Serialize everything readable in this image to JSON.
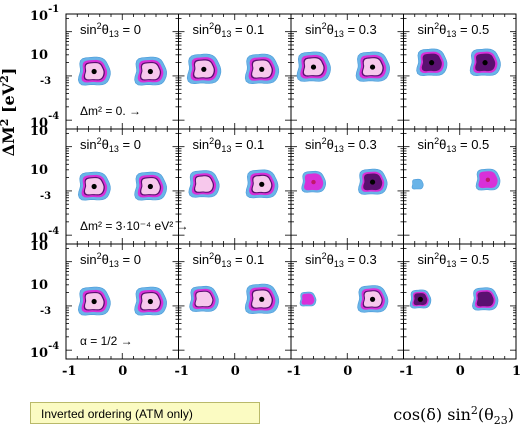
{
  "chart_data": {
    "type": "contour-grid",
    "y_label_main": "ΔM",
    "y_label_sup": "2",
    "y_label_unit_open": " [eV",
    "y_label_unit_sup": "2",
    "y_label_unit_close": "]",
    "x_label_pre": "cos(δ) sin",
    "x_label_sup": "2",
    "x_label_post": "(θ",
    "x_label_sub": "23",
    "x_label_close": ")",
    "x_ticks": [
      "-1",
      "0",
      "1"
    ],
    "x_range": [
      -1,
      1
    ],
    "y_ticks": [
      "10",
      "-3"
    ],
    "y_top_exp": "-1",
    "y_bottom_exp": "-4",
    "y_log_scale": true,
    "colors": {
      "outer": "#6ab4e8",
      "mid": "#d830d8",
      "inner_ring": "#5a1070",
      "core": "#f7c8ec",
      "best_fit": "#000000"
    },
    "columns": [
      {
        "label_base": "sin",
        "label_sup": "2",
        "label_theta": "θ",
        "label_sub": "13",
        "label_value": " = 0"
      },
      {
        "label_base": "sin",
        "label_sup": "2",
        "label_theta": "θ",
        "label_sub": "13",
        "label_value": " = 0.1"
      },
      {
        "label_base": "sin",
        "label_sup": "2",
        "label_theta": "θ",
        "label_sub": "13",
        "label_value": " = 0.3"
      },
      {
        "label_base": "sin",
        "label_sup": "2",
        "label_theta": "θ",
        "label_sub": "13",
        "label_value": " = 0.5"
      }
    ],
    "rows": [
      {
        "annotation": "Δm² = 0. →",
        "blobs": [
          [
            {
              "x": -0.5,
              "y": -2.9,
              "size": 1.0,
              "level": 4,
              "dot": "black"
            },
            {
              "x": 0.5,
              "y": -2.9,
              "size": 1.0,
              "level": 4,
              "dot": "black"
            }
          ],
          [
            {
              "x": -0.55,
              "y": -2.85,
              "size": 1.05,
              "level": 4,
              "dot": "black"
            },
            {
              "x": 0.48,
              "y": -2.85,
              "size": 1.05,
              "level": 4,
              "dot": "black"
            }
          ],
          [
            {
              "x": -0.6,
              "y": -2.8,
              "size": 1.05,
              "level": 4,
              "dot": "black"
            },
            {
              "x": 0.45,
              "y": -2.8,
              "size": 1.05,
              "level": 4,
              "dot": "black"
            }
          ],
          [
            {
              "x": -0.5,
              "y": -2.7,
              "size": 0.95,
              "level": 3,
              "dot": "black"
            },
            {
              "x": 0.45,
              "y": -2.7,
              "size": 0.95,
              "level": 3,
              "dot": "black"
            }
          ]
        ]
      },
      {
        "annotation": "Δm² = 3·10⁻⁴ eV² →",
        "blobs": [
          [
            {
              "x": -0.5,
              "y": -2.9,
              "size": 1.0,
              "level": 4,
              "dot": "black"
            },
            {
              "x": 0.5,
              "y": -2.9,
              "size": 1.0,
              "level": 4,
              "dot": "black"
            }
          ],
          [
            {
              "x": -0.55,
              "y": -2.85,
              "size": 0.95,
              "level": 4,
              "dot": "none"
            },
            {
              "x": 0.48,
              "y": -2.85,
              "size": 1.0,
              "level": 4,
              "dot": "black"
            }
          ],
          [
            {
              "x": -0.6,
              "y": -2.8,
              "size": 0.75,
              "level": 2,
              "dot": "magenta"
            },
            {
              "x": 0.45,
              "y": -2.8,
              "size": 0.9,
              "level": 3,
              "dot": "black"
            }
          ],
          [
            {
              "x": -0.75,
              "y": -2.85,
              "size": 0.35,
              "level": 1,
              "dot": "none"
            },
            {
              "x": 0.5,
              "y": -2.75,
              "size": 0.75,
              "level": 2,
              "dot": "magenta"
            }
          ]
        ]
      },
      {
        "annotation": "α = 1/2 →",
        "blobs": [
          [
            {
              "x": -0.5,
              "y": -2.9,
              "size": 1.0,
              "level": 4,
              "dot": "black"
            },
            {
              "x": 0.5,
              "y": -2.9,
              "size": 1.0,
              "level": 4,
              "dot": "black"
            }
          ],
          [
            {
              "x": -0.55,
              "y": -2.85,
              "size": 0.9,
              "level": 4,
              "dot": "none"
            },
            {
              "x": 0.48,
              "y": -2.85,
              "size": 1.05,
              "level": 4,
              "dot": "black"
            }
          ],
          [
            {
              "x": -0.7,
              "y": -2.85,
              "size": 0.5,
              "level": 2,
              "dot": "none"
            },
            {
              "x": 0.45,
              "y": -2.85,
              "size": 0.95,
              "level": 4,
              "dot": "black"
            }
          ],
          [
            {
              "x": -0.7,
              "y": -2.85,
              "size": 0.65,
              "level": 3,
              "dot": "black"
            },
            {
              "x": 0.45,
              "y": -2.85,
              "size": 0.8,
              "level": 3,
              "dot": "none"
            }
          ]
        ]
      }
    ]
  },
  "footer": {
    "note": "Inverted ordering (ATM only)"
  }
}
